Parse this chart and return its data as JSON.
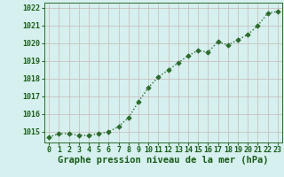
{
  "x": [
    0,
    1,
    2,
    3,
    4,
    5,
    6,
    7,
    8,
    9,
    10,
    11,
    12,
    13,
    14,
    15,
    16,
    17,
    18,
    19,
    20,
    21,
    22,
    23
  ],
  "y": [
    1014.7,
    1014.9,
    1014.9,
    1014.8,
    1014.8,
    1014.9,
    1015.0,
    1015.3,
    1015.8,
    1016.7,
    1017.5,
    1018.1,
    1018.5,
    1018.9,
    1019.3,
    1019.6,
    1019.5,
    1020.1,
    1019.9,
    1020.2,
    1020.5,
    1021.0,
    1021.7,
    1021.8
  ],
  "xlabel": "Graphe pression niveau de la mer (hPa)",
  "ylim": [
    1014.4,
    1022.3
  ],
  "yticks": [
    1015,
    1016,
    1017,
    1018,
    1019,
    1020,
    1021,
    1022
  ],
  "xticks": [
    0,
    1,
    2,
    3,
    4,
    5,
    6,
    7,
    8,
    9,
    10,
    11,
    12,
    13,
    14,
    15,
    16,
    17,
    18,
    19,
    20,
    21,
    22,
    23
  ],
  "line_color": "#2d6a2d",
  "marker_color": "#2d6a2d",
  "bg_color": "#d5f0ee",
  "grid_color_v": "#c8b8b8",
  "grid_color_h": "#c8b8b8",
  "xlabel_color": "#1a5c1a",
  "xlabel_fontsize": 7.5,
  "tick_fontsize": 6.0,
  "line_width": 1.0,
  "marker_size": 2.8
}
